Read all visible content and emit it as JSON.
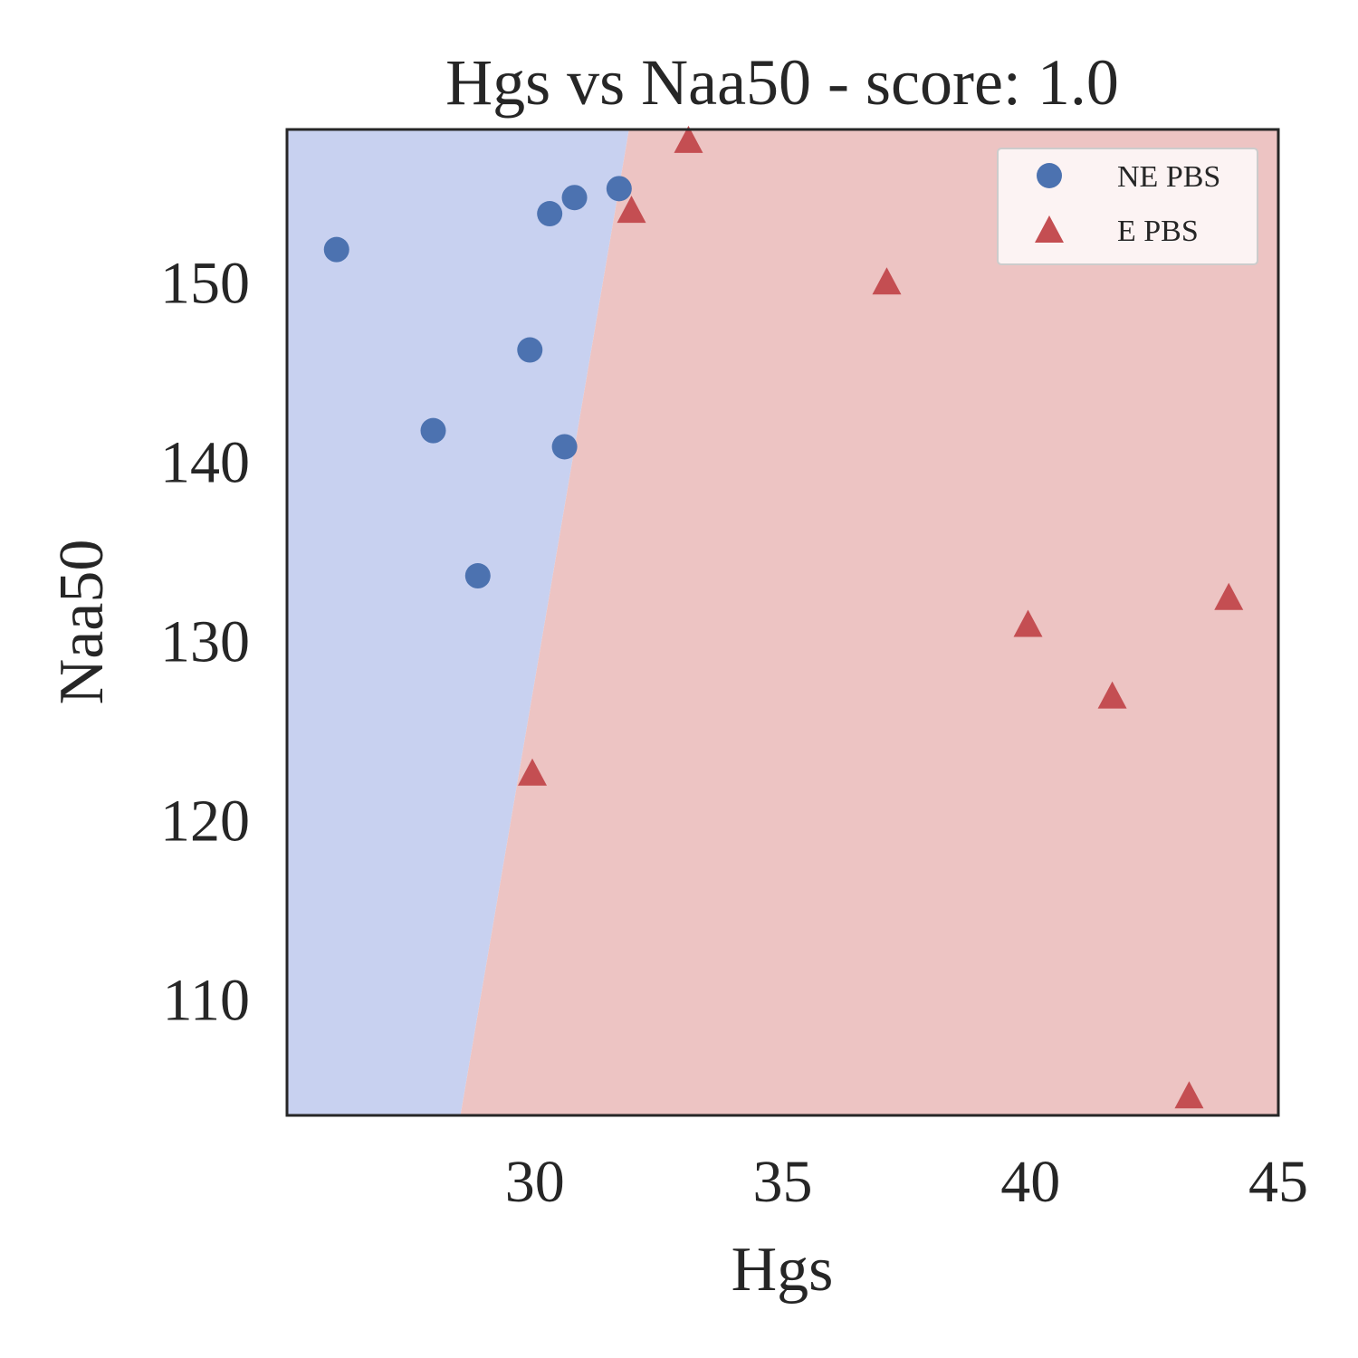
{
  "chart_data": {
    "type": "scatter",
    "title": "Hgs vs Naa50 - score: 1.0",
    "xlabel": "Hgs",
    "ylabel": "Naa50",
    "xlim": [
      25.0,
      45.0
    ],
    "ylim": [
      103.5,
      158.5
    ],
    "xticks": [
      30,
      35,
      40,
      45
    ],
    "yticks": [
      110,
      120,
      130,
      140,
      150
    ],
    "grid": false,
    "legend_position": "top-right",
    "decision_boundary": {
      "points": [
        [
          28.5,
          103.5
        ],
        [
          31.9,
          158.5
        ]
      ],
      "left_region_class": "NE PBS",
      "right_region_class": "E PBS",
      "left_color": "#c8d1f0",
      "right_color": "#edc4c3"
    },
    "series": [
      {
        "name": "NE PBS",
        "marker": "circle",
        "color": "#4c72b0",
        "x": [
          26.0,
          27.95,
          28.85,
          29.9,
          30.3,
          30.6,
          30.8,
          31.7
        ],
        "y": [
          151.8,
          141.7,
          133.6,
          146.2,
          153.8,
          140.8,
          154.7,
          155.2
        ]
      },
      {
        "name": "E PBS",
        "marker": "triangle",
        "color": "#c44e52",
        "x": [
          29.95,
          31.95,
          33.1,
          37.1,
          39.95,
          41.65,
          43.2,
          44.0
        ],
        "y": [
          122.5,
          153.9,
          157.8,
          149.9,
          130.8,
          126.8,
          104.5,
          132.3
        ]
      }
    ]
  }
}
